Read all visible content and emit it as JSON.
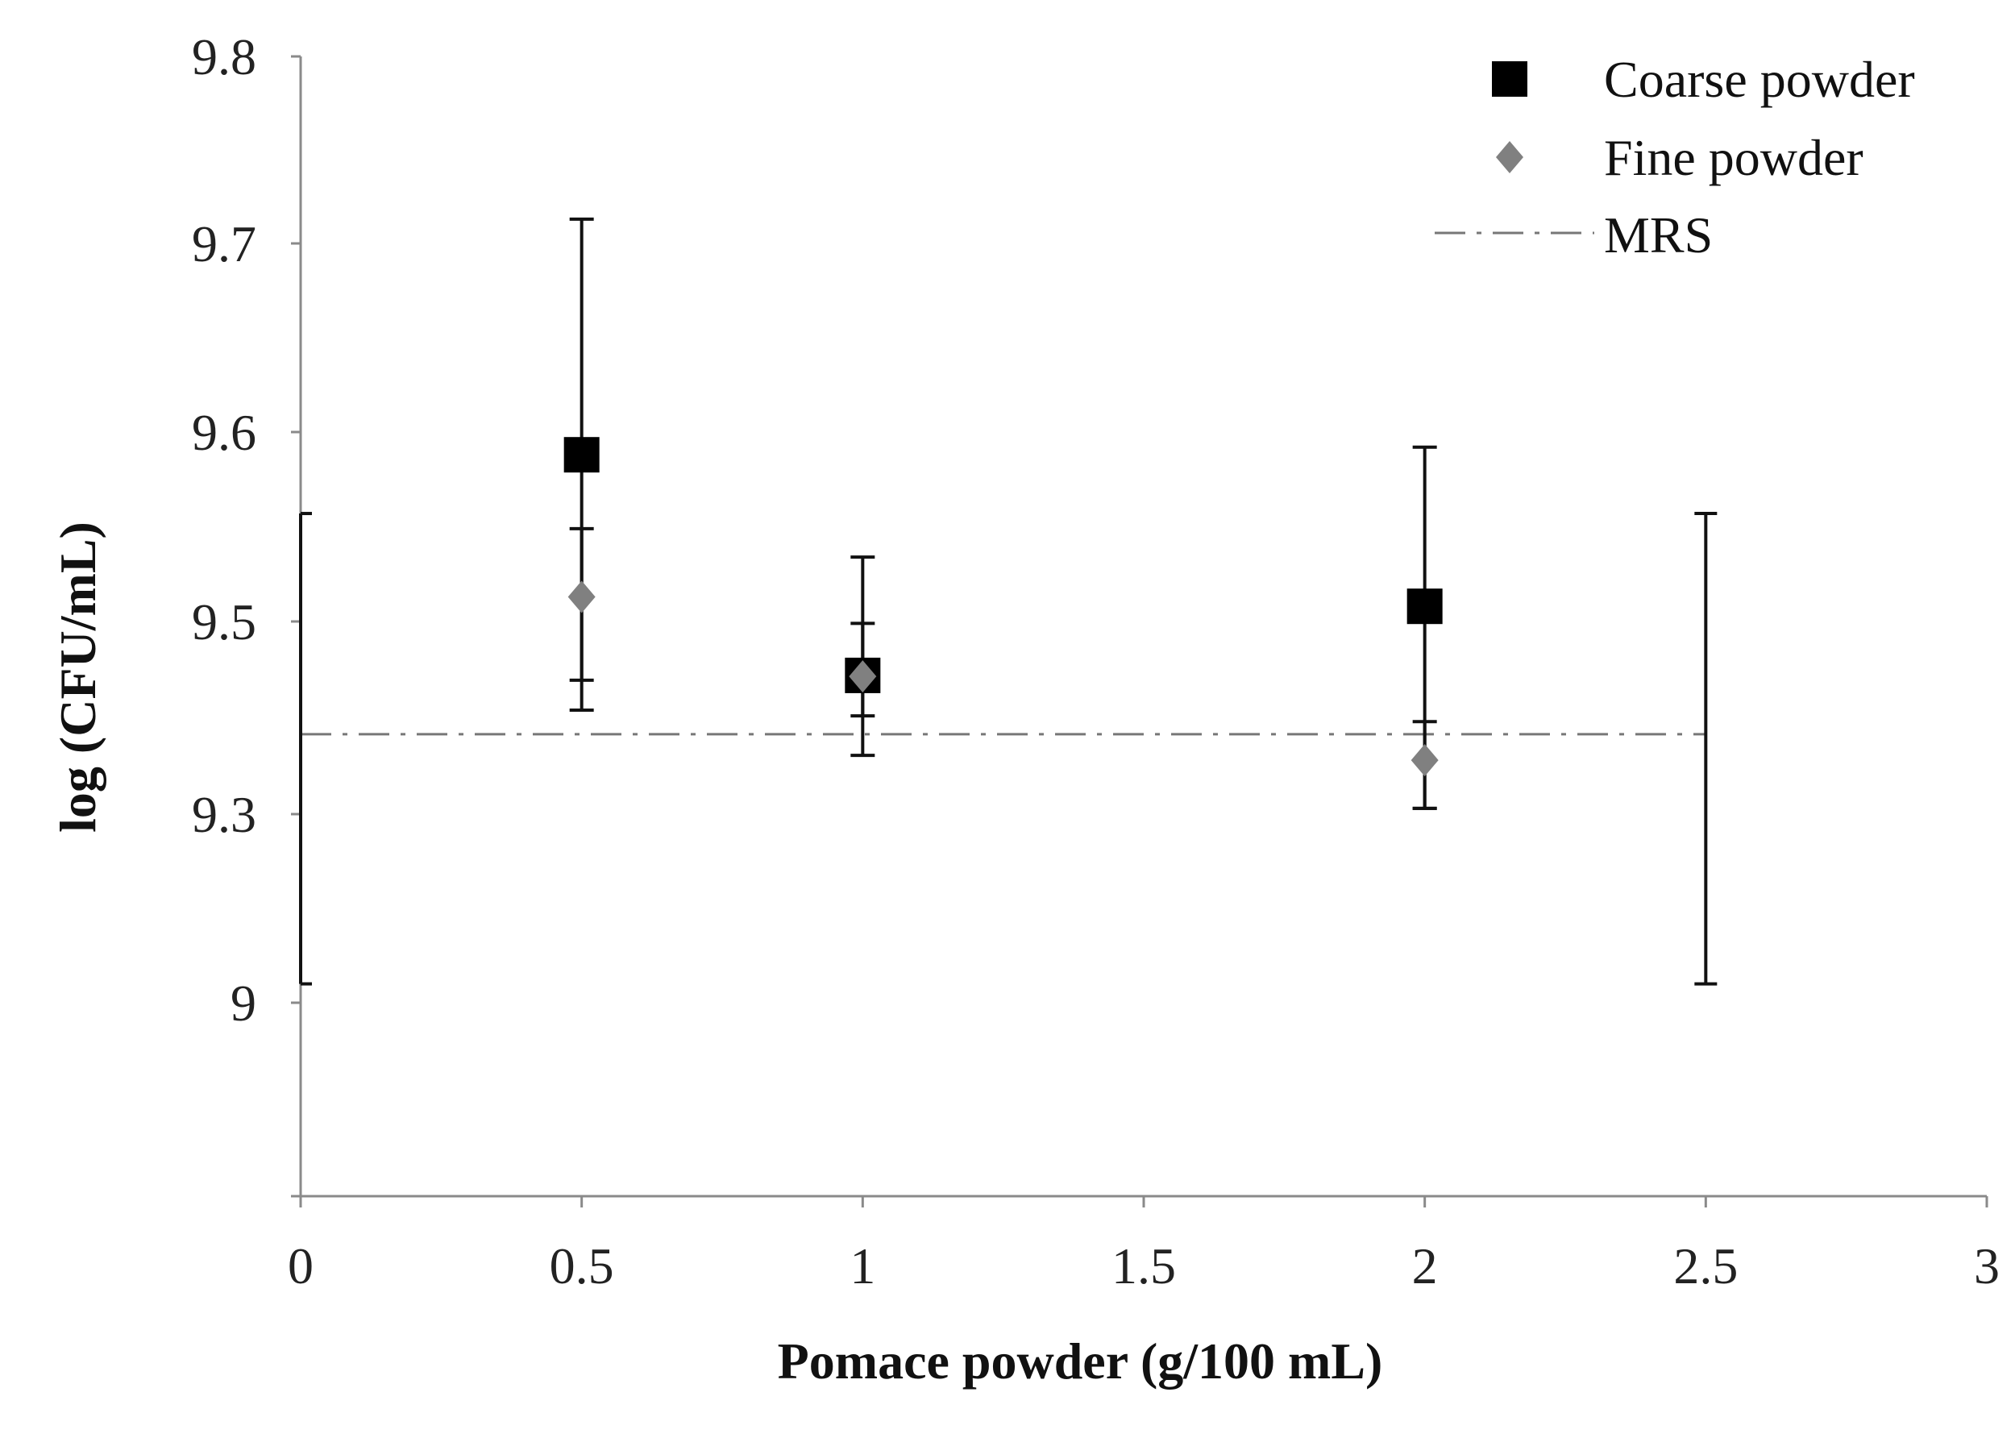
{
  "chart_data": {
    "type": "scatter",
    "title": "",
    "xlabel": "Pomace powder (g/100 mL)",
    "ylabel": "log (CFU/mL)",
    "xlim": [
      0,
      3
    ],
    "x_ticks": [
      "0",
      "0.5",
      "1",
      "1.5",
      "2",
      "2.5",
      "3"
    ],
    "y_ticks": [
      "9.8",
      "9.7",
      "9.6",
      "9.5",
      "9.3",
      "9",
      ""
    ],
    "series": [
      {
        "name": "Coarse powder",
        "marker": "square",
        "color": "#000000",
        "points": [
          {
            "x": 0.5,
            "y": 9.588,
            "err_low": 9.408,
            "err_high": 9.713
          },
          {
            "x": 1.0,
            "y": 9.444,
            "err_low": 9.361,
            "err_high": 9.498
          },
          {
            "x": 2.0,
            "y": 9.508,
            "err_low": 9.306,
            "err_high": 9.592
          }
        ]
      },
      {
        "name": "Fine powder",
        "marker": "diamond",
        "color": "#808080",
        "points": [
          {
            "x": 0.5,
            "y": 9.513,
            "err_low": 9.439,
            "err_high": 9.549
          },
          {
            "x": 1.0,
            "y": 9.443,
            "err_low": 9.402,
            "err_high": 9.534
          },
          {
            "x": 2.0,
            "y": 9.356,
            "err_low": 9.306,
            "err_high": 9.396
          }
        ]
      }
    ],
    "reference_line": {
      "name": "MRS",
      "style": "dash-dot",
      "color": "#777777",
      "y": 9.383,
      "x_range": [
        0,
        2.5
      ],
      "err_low": 9.03,
      "err_high": 9.557,
      "err_x": [
        0,
        2.5
      ]
    },
    "legend": {
      "position": "top-right",
      "entries": [
        "Coarse powder",
        "Fine powder",
        "MRS"
      ]
    },
    "grid": false
  }
}
